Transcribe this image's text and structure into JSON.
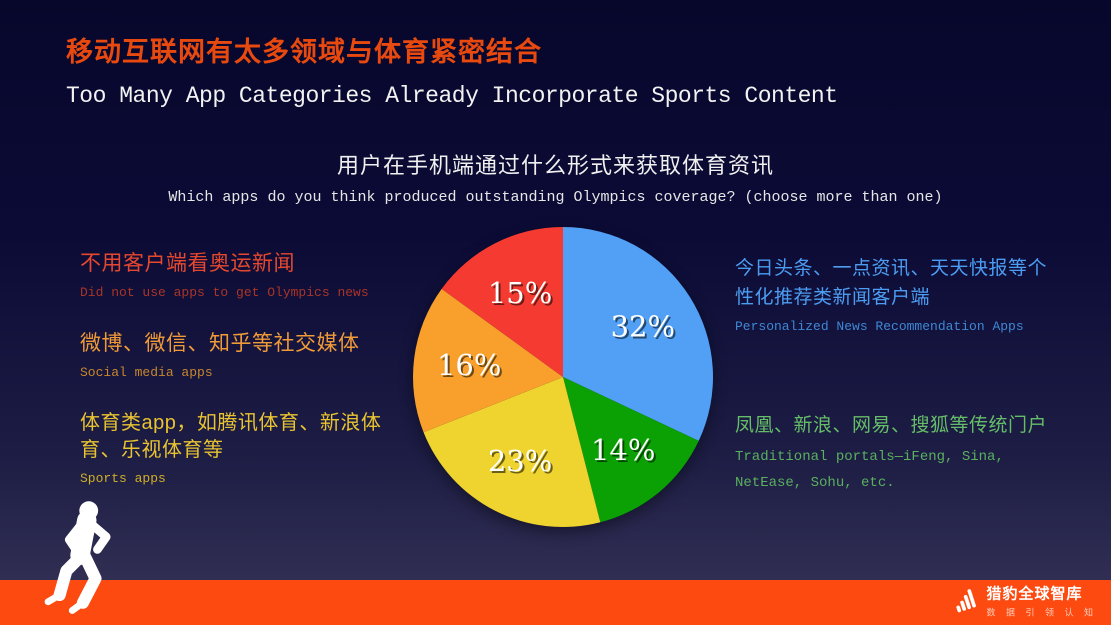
{
  "header": {
    "title_zh": "移动互联网有太多领域与体育紧密结合",
    "title_en": "Too Many App Categories Already Incorporate Sports Content"
  },
  "legend": {
    "left": [
      {
        "zh": "不用客户端看奥运新闻",
        "en": "Did not use apps to get Olympics news",
        "color_zh": "#e5482e",
        "color_en": "#aa3526"
      },
      {
        "zh": "微博、微信、知乎等社交媒体",
        "en": "Social media apps",
        "color_zh": "#f09a38",
        "color_en": "#c9872c"
      },
      {
        "zh": "体育类app，如腾讯体育、新浪体育、乐视体育等",
        "en": "Sports apps",
        "color_zh": "#e9c430",
        "color_en": "#cfae27"
      }
    ],
    "right": [
      {
        "zh": "今日头条、一点资讯、天天快报等个性化推荐类新闻客户端",
        "en": "Personalized News Recommendation Apps",
        "color_zh": "#4c9df2",
        "color_en": "#3e88d4"
      },
      {
        "zh": "凤凰、新浪、网易、搜狐等传统门户",
        "en": "Traditional portals—iFeng, Sina, NetEase, Sohu, etc.",
        "color_zh": "#66bd68",
        "color_en": "#5ab05e"
      }
    ]
  },
  "chart_data": {
    "type": "pie",
    "title": "用户在手机端通过什么形式来获取体育资讯",
    "subtitle": "Which apps do you think produced outstanding Olympics coverage? (choose more than one)",
    "direction": "clockwise",
    "start_angle_deg": 0,
    "value_label_format": "{value}%",
    "legend_position": "sides",
    "slices": [
      {
        "label": "今日头条、一点资讯、天天快报等个性化推荐类新闻客户端 / Personalized News Recommendation Apps",
        "value": 32,
        "color": "#52a0f5"
      },
      {
        "label": "凤凰、新浪、网易、搜狐等传统门户 / Traditional portals—iFeng, Sina, NetEase, Sohu, etc.",
        "value": 14,
        "color": "#0ba104"
      },
      {
        "label": "体育类app，如腾讯体育、新浪体育、乐视体育等 / Sports apps",
        "value": 23,
        "color": "#efd32e"
      },
      {
        "label": "微博、微信、知乎等社交媒体 / Social media apps",
        "value": 16,
        "color": "#f8a02b"
      },
      {
        "label": "不用客户端看奥运新闻 / Did not use apps to get Olympics news",
        "value": 15,
        "color": "#f53b31"
      }
    ]
  },
  "footer": {
    "logo_text": "猎豹全球智库",
    "logo_tagline": "数 据 引 领 认 知",
    "bar_color": "#fc4a10"
  },
  "colors": {
    "background_top": "#07072c",
    "background_bottom": "#373457",
    "title_accent": "#e8490f",
    "text_white": "#f2f2f2"
  }
}
